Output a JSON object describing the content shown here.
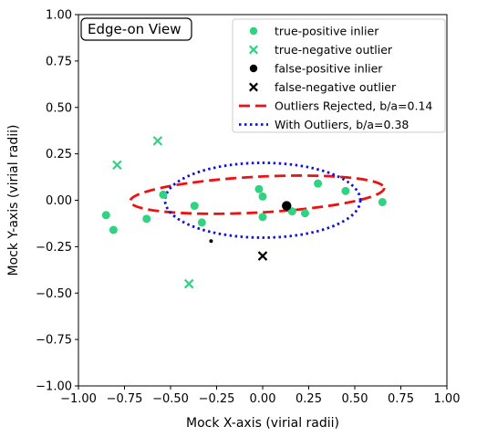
{
  "chart_data": {
    "type": "scatter",
    "title": "",
    "xlabel": "Mock X-axis (virial radii)",
    "ylabel": "Mock Y-axis (virial radii)",
    "xlim": [
      -1.0,
      1.0
    ],
    "ylim": [
      -1.0,
      1.0
    ],
    "xticks": [
      "−1.00",
      "−0.75",
      "−0.50",
      "−0.25",
      "0.00",
      "0.25",
      "0.50",
      "0.75",
      "1.00"
    ],
    "yticks": [
      "−1.00",
      "−0.75",
      "−0.50",
      "−0.25",
      "0.00",
      "0.25",
      "0.50",
      "0.75",
      "1.00"
    ],
    "xtick_values": [
      -1.0,
      -0.75,
      -0.5,
      -0.25,
      0.0,
      0.25,
      0.5,
      0.75,
      1.0
    ],
    "ytick_values": [
      -1.0,
      -0.75,
      -0.5,
      -0.25,
      0.0,
      0.25,
      0.5,
      0.75,
      1.0
    ],
    "grid": false,
    "legend_position": "top-right",
    "annotation": "Edge-on View",
    "series": [
      {
        "name": "true-positive inlier",
        "marker": "circle",
        "color": "#2fd381",
        "points": [
          {
            "x": -0.85,
            "y": -0.08
          },
          {
            "x": -0.81,
            "y": -0.16
          },
          {
            "x": -0.63,
            "y": -0.1
          },
          {
            "x": -0.54,
            "y": 0.03
          },
          {
            "x": -0.37,
            "y": -0.03
          },
          {
            "x": -0.33,
            "y": -0.12
          },
          {
            "x": -0.02,
            "y": 0.06
          },
          {
            "x": 0.0,
            "y": 0.02
          },
          {
            "x": 0.0,
            "y": -0.09
          },
          {
            "x": 0.16,
            "y": -0.06
          },
          {
            "x": 0.23,
            "y": -0.07
          },
          {
            "x": 0.3,
            "y": 0.09
          },
          {
            "x": 0.45,
            "y": 0.05
          },
          {
            "x": 0.65,
            "y": -0.01
          }
        ]
      },
      {
        "name": "true-negative outlier",
        "marker": "x",
        "color": "#2fd381",
        "points": [
          {
            "x": -0.79,
            "y": 0.19
          },
          {
            "x": -0.57,
            "y": 0.32
          },
          {
            "x": -0.4,
            "y": -0.45
          }
        ]
      },
      {
        "name": "false-positive inlier",
        "marker": "circle",
        "color": "#000000",
        "points": [
          {
            "x": 0.13,
            "y": -0.03,
            "size": "large"
          },
          {
            "x": -0.28,
            "y": -0.22,
            "size": "small"
          }
        ]
      },
      {
        "name": "false-negative outlier",
        "marker": "x",
        "color": "#000000",
        "points": [
          {
            "x": 0.0,
            "y": -0.3
          }
        ]
      },
      {
        "name": "Outliers Rejected, b/a=0.14",
        "kind": "ellipse",
        "line_style": "dashed",
        "color": "#ee1111",
        "center": [
          -0.03,
          0.03
        ],
        "semi_major": 0.69,
        "axis_ratio": 0.14,
        "angle_deg": 3.0
      },
      {
        "name": "With Outliers, b/a=0.38",
        "kind": "ellipse",
        "line_style": "dotted",
        "color": "#1111dd",
        "center": [
          0.0,
          0.0
        ],
        "semi_major": 0.53,
        "axis_ratio": 0.38,
        "angle_deg": 0.0
      }
    ]
  }
}
